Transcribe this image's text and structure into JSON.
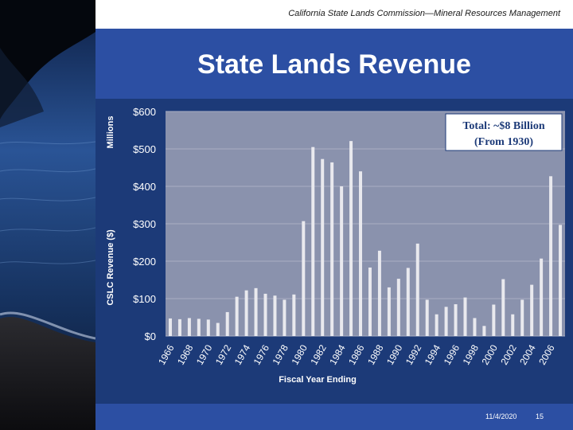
{
  "header": {
    "subtitle": "California State Lands Commission—Mineral Resources Management"
  },
  "slide": {
    "title": "State Lands Revenue"
  },
  "footer": {
    "date": "11/4/2020",
    "page": "15"
  },
  "colors": {
    "panel": "#2c4fa3",
    "plot_bg": "#8a92ad",
    "bar": "#e9e9ee",
    "axis_text": "#ffffff"
  },
  "chart_data": {
    "type": "bar",
    "title": "",
    "xlabel": "Fiscal Year Ending",
    "ylabel": "CSLC Revenue ($)",
    "ylabel_units": "Millions",
    "ylim": [
      0,
      600
    ],
    "yticks": [
      "$0",
      "$100",
      "$200",
      "$300",
      "$400",
      "$500",
      "$600"
    ],
    "xtick_labels": [
      "1966",
      "1968",
      "1970",
      "1972",
      "1974",
      "1976",
      "1978",
      "1980",
      "1982",
      "1984",
      "1986",
      "1988",
      "1990",
      "1992",
      "1994",
      "1996",
      "1998",
      "2000",
      "2002",
      "2004",
      "2006"
    ],
    "categories": [
      1966,
      1967,
      1968,
      1969,
      1970,
      1971,
      1972,
      1973,
      1974,
      1975,
      1976,
      1977,
      1978,
      1979,
      1980,
      1981,
      1982,
      1983,
      1984,
      1985,
      1986,
      1987,
      1988,
      1989,
      1990,
      1991,
      1992,
      1993,
      1994,
      1995,
      1996,
      1997,
      1998,
      1999,
      2000,
      2001,
      2002,
      2003,
      2004,
      2005,
      2006,
      2007
    ],
    "values": [
      47,
      45,
      48,
      46,
      44,
      35,
      64,
      105,
      122,
      128,
      113,
      108,
      97,
      111,
      307,
      505,
      473,
      464,
      400,
      521,
      440,
      183,
      228,
      130,
      153,
      182,
      247,
      97,
      58,
      78,
      85,
      103,
      48,
      27,
      84,
      152,
      58,
      97,
      137,
      207,
      427,
      297
    ],
    "annotation": {
      "line1": "Total:   ~$8 Billion",
      "line2": "(From 1930)"
    },
    "grid": true
  }
}
